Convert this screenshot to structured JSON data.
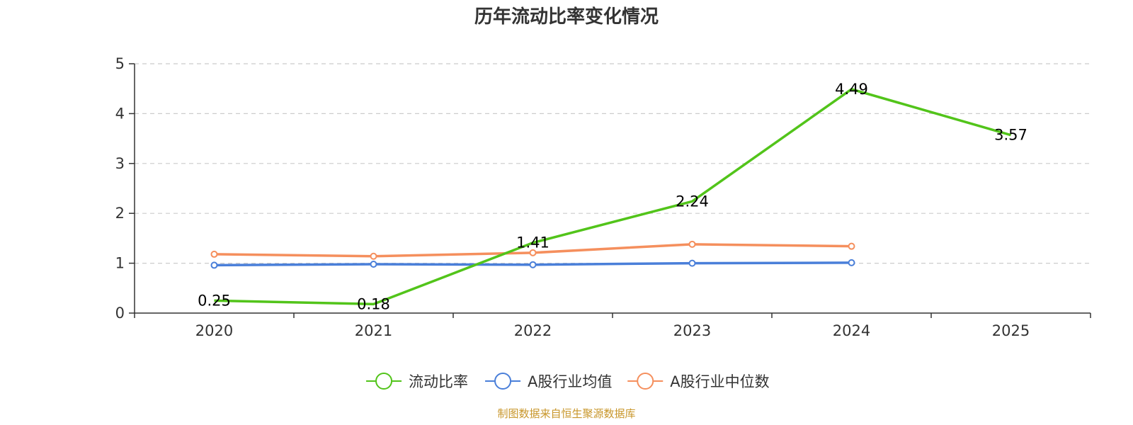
{
  "chart_data": {
    "type": "line",
    "title": "历年流动比率变化情况",
    "categories": [
      "2020",
      "2021",
      "2022",
      "2023",
      "2024",
      "2025"
    ],
    "ylim": [
      0,
      5
    ],
    "yticks": [
      0,
      1,
      2,
      3,
      4,
      5
    ],
    "grid": true,
    "legend_position": "bottom",
    "series": [
      {
        "name": "流动比率",
        "color": "#52c41a",
        "values": [
          0.25,
          0.18,
          1.41,
          2.24,
          4.49,
          3.57
        ],
        "data_labels": [
          "0.25",
          "0.18",
          "1.41",
          "2.24",
          "4.49",
          "3.57"
        ]
      },
      {
        "name": "A股行业均值",
        "color": "#4a7fd9",
        "values": [
          0.96,
          0.98,
          0.97,
          1.0,
          1.01,
          null
        ]
      },
      {
        "name": "A股行业中位数",
        "color": "#f58f5d",
        "values": [
          1.18,
          1.14,
          1.21,
          1.38,
          1.34,
          null
        ]
      }
    ]
  },
  "footer": {
    "source": "制图数据来自恒生聚源数据库"
  }
}
